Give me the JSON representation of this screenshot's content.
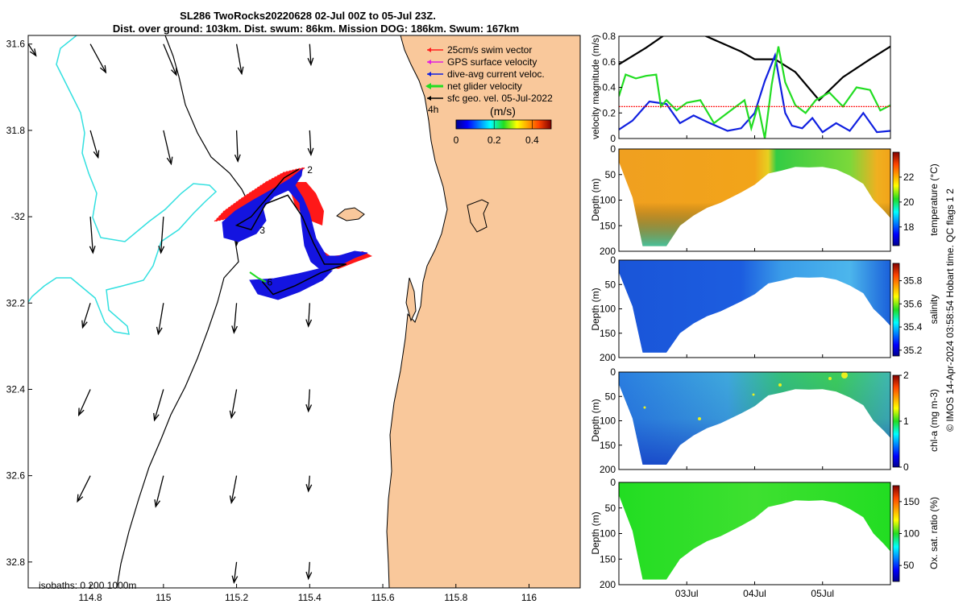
{
  "title": {
    "line1": "SL286 TwoRocks20220628 02-Jul 00Z to 05-Jul 23Z.",
    "line2": "Dist. over ground: 103km. Dist. swum: 86km. Mission DOG: 186km. Swum: 167km"
  },
  "colors": {
    "land": "#f9c89b",
    "isobath_cyan": "#33e0e0",
    "swim_vector": "#ff2020",
    "gps_velocity": "#e020e0",
    "dive_avg_current": "#1020e0",
    "net_glider_velocity": "#22dd22",
    "sfc_geo_vel": "#000000",
    "swim_speed_line": "#ff0000"
  },
  "chart_data": [
    {
      "type": "map",
      "xlim": [
        114.63,
        116.14
      ],
      "ylim": [
        -32.86,
        -31.58
      ],
      "x_ticks": [
        114.8,
        115,
        115.2,
        115.4,
        115.6,
        115.8,
        116
      ],
      "x_tick_labels": [
        "114.8",
        "115",
        "115.2",
        "115.4",
        "115.6",
        "115.8",
        "116"
      ],
      "y_ticks": [
        -31.6,
        -31.8,
        -32,
        -32.2,
        -32.4,
        -32.6,
        -32.8
      ],
      "y_tick_labels": [
        "31.6",
        "31.8",
        "-32",
        "32.2",
        "32.4",
        "32.6",
        "32.8"
      ],
      "legend": {
        "position": "top-right",
        "entries": [
          "25cm/s swim vector",
          "GPS surface velocity",
          "dive-avg current veloc.",
          "net glider velocity",
          "sfc geo. vel. 05-Jul-2022"
        ],
        "note": "4h"
      },
      "colorbar": {
        "label": "(m/s)",
        "range": [
          0,
          0.5
        ],
        "ticks": [
          0,
          0.2,
          0.4
        ],
        "tick_labels": [
          "0",
          "0.2",
          "0.4"
        ]
      },
      "isobath_note": "isobaths: 0   200  1000m",
      "waypoint_labels": [
        "2",
        "3",
        "6"
      ],
      "waypoints": [
        {
          "label": "2",
          "lon": 115.38,
          "lat": -31.89
        },
        {
          "label": "3",
          "lon": 115.25,
          "lat": -32.03
        },
        {
          "label": "6",
          "lon": 115.27,
          "lat": -32.15
        }
      ],
      "glider_track": [
        {
          "lon": 115.37,
          "lat": -31.89
        },
        {
          "lon": 115.33,
          "lat": -31.91
        },
        {
          "lon": 115.28,
          "lat": -31.96
        },
        {
          "lon": 115.24,
          "lat": -32.0
        },
        {
          "lon": 115.2,
          "lat": -32.02
        },
        {
          "lon": 115.24,
          "lat": -32.03
        },
        {
          "lon": 115.28,
          "lat": -31.97
        },
        {
          "lon": 115.34,
          "lat": -31.95
        },
        {
          "lon": 115.38,
          "lat": -32.0
        },
        {
          "lon": 115.41,
          "lat": -32.06
        },
        {
          "lon": 115.44,
          "lat": -32.11
        },
        {
          "lon": 115.5,
          "lat": -32.11
        },
        {
          "lon": 115.43,
          "lat": -32.13
        },
        {
          "lon": 115.36,
          "lat": -32.16
        },
        {
          "lon": 115.3,
          "lat": -32.18
        },
        {
          "lon": 115.27,
          "lat": -32.15
        }
      ],
      "geo_vectors": [
        {
          "lon": 114.63,
          "lat": -31.6,
          "u": 0.06,
          "v": -0.09
        },
        {
          "lon": 114.8,
          "lat": -31.6,
          "u": 0.12,
          "v": -0.22
        },
        {
          "lon": 115.0,
          "lat": -31.6,
          "u": 0.1,
          "v": -0.24
        },
        {
          "lon": 115.2,
          "lat": -31.6,
          "u": 0.04,
          "v": -0.23
        },
        {
          "lon": 115.4,
          "lat": -31.6,
          "u": 0.01,
          "v": -0.16
        },
        {
          "lon": 114.8,
          "lat": -31.8,
          "u": 0.06,
          "v": -0.21
        },
        {
          "lon": 115.0,
          "lat": -31.8,
          "u": 0.06,
          "v": -0.26
        },
        {
          "lon": 115.2,
          "lat": -31.8,
          "u": 0.01,
          "v": -0.24
        },
        {
          "lon": 115.4,
          "lat": -31.8,
          "u": 0.01,
          "v": -0.19
        },
        {
          "lon": 114.8,
          "lat": -32.0,
          "u": 0.02,
          "v": -0.28
        },
        {
          "lon": 115.0,
          "lat": -32.0,
          "u": -0.02,
          "v": -0.28
        },
        {
          "lon": 115.2,
          "lat": -32.0,
          "u": 0.0,
          "v": -0.22
        },
        {
          "lon": 114.8,
          "lat": -32.2,
          "u": -0.06,
          "v": -0.19
        },
        {
          "lon": 115.0,
          "lat": -32.2,
          "u": -0.04,
          "v": -0.24
        },
        {
          "lon": 115.2,
          "lat": -32.2,
          "u": -0.02,
          "v": -0.23
        },
        {
          "lon": 115.4,
          "lat": -32.2,
          "u": -0.01,
          "v": -0.18
        },
        {
          "lon": 114.8,
          "lat": -32.4,
          "u": -0.09,
          "v": -0.2
        },
        {
          "lon": 115.0,
          "lat": -32.4,
          "u": -0.07,
          "v": -0.24
        },
        {
          "lon": 115.2,
          "lat": -32.4,
          "u": -0.04,
          "v": -0.22
        },
        {
          "lon": 115.4,
          "lat": -32.4,
          "u": -0.01,
          "v": -0.17
        },
        {
          "lon": 114.8,
          "lat": -32.6,
          "u": -0.1,
          "v": -0.2
        },
        {
          "lon": 115.0,
          "lat": -32.6,
          "u": -0.06,
          "v": -0.24
        },
        {
          "lon": 115.2,
          "lat": -32.6,
          "u": -0.04,
          "v": -0.21
        },
        {
          "lon": 115.4,
          "lat": -32.6,
          "u": -0.01,
          "v": -0.12
        },
        {
          "lon": 115.2,
          "lat": -32.8,
          "u": -0.02,
          "v": -0.16
        },
        {
          "lon": 115.4,
          "lat": -32.8,
          "u": -0.01,
          "v": -0.13
        }
      ]
    },
    {
      "type": "line",
      "ylabel": "velocity magnitude (m/s)",
      "ylim": [
        0,
        0.8
      ],
      "y_ticks": [
        0,
        0.2,
        0.4,
        0.6,
        0.8
      ],
      "y_tick_labels": [
        "0",
        "0.2",
        "0.4",
        "0.6",
        "0.8"
      ],
      "xlim_days": [
        2.0,
        6.0
      ],
      "series": [
        {
          "key": "geo",
          "color": "#000000",
          "x": [
            2.0,
            2.4,
            2.7,
            3.2,
            3.8,
            4.0,
            4.3,
            4.6,
            4.95,
            5.3,
            5.7,
            6.0
          ],
          "values": [
            0.58,
            0.71,
            0.82,
            0.82,
            0.68,
            0.62,
            0.62,
            0.52,
            0.3,
            0.48,
            0.62,
            0.72
          ]
        },
        {
          "key": "dive_avg",
          "color": "#1020e0",
          "x": [
            2.0,
            2.2,
            2.45,
            2.7,
            2.9,
            3.1,
            3.3,
            3.6,
            3.8,
            4.0,
            4.15,
            4.3,
            4.45,
            4.55,
            4.7,
            4.85,
            5.0,
            5.2,
            5.4,
            5.6,
            5.8,
            6.0
          ],
          "values": [
            0.07,
            0.14,
            0.29,
            0.27,
            0.12,
            0.18,
            0.13,
            0.06,
            0.08,
            0.2,
            0.45,
            0.65,
            0.2,
            0.1,
            0.08,
            0.16,
            0.05,
            0.12,
            0.06,
            0.2,
            0.05,
            0.06
          ]
        },
        {
          "key": "net_glider",
          "color": "#22dd22",
          "x": [
            2.0,
            2.1,
            2.25,
            2.4,
            2.55,
            2.62,
            2.7,
            2.85,
            3.0,
            3.2,
            3.4,
            3.55,
            3.7,
            3.85,
            3.95,
            4.05,
            4.15,
            4.25,
            4.35,
            4.45,
            4.6,
            4.75,
            4.9,
            5.1,
            5.3,
            5.5,
            5.7,
            5.85,
            6.0
          ],
          "values": [
            0.33,
            0.5,
            0.47,
            0.49,
            0.5,
            0.25,
            0.3,
            0.22,
            0.28,
            0.3,
            0.12,
            0.18,
            0.24,
            0.3,
            0.08,
            0.26,
            0.0,
            0.42,
            0.72,
            0.44,
            0.26,
            0.2,
            0.3,
            0.36,
            0.25,
            0.4,
            0.38,
            0.22,
            0.26
          ]
        },
        {
          "key": "swim",
          "color": "#ff0000",
          "x": [
            2.0,
            6.0
          ],
          "values": [
            0.25,
            0.25
          ]
        }
      ]
    },
    {
      "type": "heatmap",
      "variable": "temperature",
      "ylabel": "Depth (m)",
      "colorbar_label": "temperature (°C)",
      "ylim": [
        0,
        200
      ],
      "y_ticks": [
        0,
        50,
        100,
        150,
        200
      ],
      "y_tick_labels": [
        "0",
        "50",
        "100",
        "150",
        "200"
      ],
      "colorbar_range": [
        16.5,
        24
      ],
      "colorbar_ticks": [
        18,
        20,
        22
      ],
      "colorbar_tick_labels": [
        "18",
        "20",
        "22"
      ]
    },
    {
      "type": "heatmap",
      "variable": "salinity",
      "ylabel": "Depth (m)",
      "colorbar_label": "salinity",
      "ylim": [
        0,
        200
      ],
      "y_ticks": [
        0,
        50,
        100,
        150,
        200
      ],
      "y_tick_labels": [
        "0",
        "50",
        "100",
        "150",
        "200"
      ],
      "colorbar_range": [
        35.15,
        35.95
      ],
      "colorbar_ticks": [
        35.2,
        35.4,
        35.6,
        35.8
      ],
      "colorbar_tick_labels": [
        "35.2",
        "35.4",
        "35.6",
        "35.8"
      ]
    },
    {
      "type": "heatmap",
      "variable": "chl-a",
      "ylabel": "Depth (m)",
      "colorbar_label": "chl-a (mg m-3)",
      "ylim": [
        0,
        200
      ],
      "y_ticks": [
        0,
        50,
        100,
        150,
        200
      ],
      "y_tick_labels": [
        "0",
        "50",
        "100",
        "150",
        "200"
      ],
      "colorbar_range": [
        0,
        2
      ],
      "colorbar_ticks": [
        0,
        1,
        2
      ],
      "colorbar_tick_labels": [
        "0",
        "1",
        "2"
      ]
    },
    {
      "type": "heatmap",
      "variable": "oxygen saturation",
      "ylabel": "Depth (m)",
      "colorbar_label": "Ox. sat. ratio (%)",
      "ylim": [
        0,
        200
      ],
      "y_ticks": [
        0,
        50,
        100,
        150,
        200
      ],
      "y_tick_labels": [
        "0",
        "50",
        "100",
        "150",
        "200"
      ],
      "colorbar_range": [
        25,
        175
      ],
      "colorbar_ticks": [
        50,
        100,
        150
      ],
      "colorbar_tick_labels": [
        "50",
        "100",
        "150"
      ],
      "x_ticks_days": [
        3,
        4,
        5
      ],
      "x_tick_labels": [
        "03Jul",
        "04Jul",
        "05Jul"
      ]
    }
  ],
  "section_profile": {
    "days": [
      2.0,
      2.2,
      2.35,
      2.5,
      2.7,
      2.9,
      3.1,
      3.3,
      3.5,
      3.8,
      4.0,
      4.2,
      4.4,
      4.6,
      4.8,
      5.0,
      5.2,
      5.4,
      5.6,
      5.75,
      5.9,
      6.0
    ],
    "bottom_depth_m": [
      25,
      95,
      190,
      190,
      190,
      150,
      130,
      115,
      105,
      85,
      70,
      48,
      42,
      35,
      36,
      35,
      40,
      52,
      68,
      100,
      120,
      135
    ]
  },
  "footer": "© IMOS 14-Apr-2024 03:58:54 Hobart time. QC flags 1  2"
}
